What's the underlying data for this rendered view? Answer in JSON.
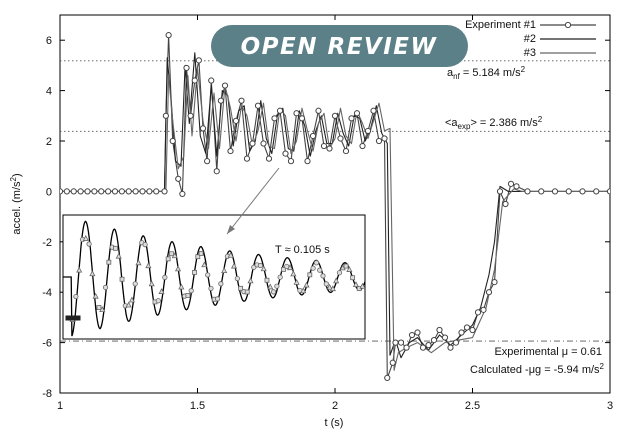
{
  "banner": {
    "text": "OPEN REVIEW",
    "color": "#5b8087"
  },
  "chart_data": {
    "type": "line",
    "xlabel": "t (s)",
    "ylabel": "accel. (m/s²)",
    "xlim": [
      1,
      3
    ],
    "ylim": [
      -8,
      7
    ],
    "x_ticks": [
      1,
      1.5,
      2,
      2.5,
      3
    ],
    "x_tick_labels": [
      "1",
      "1.5",
      "2",
      "2.5",
      "3"
    ],
    "y_ticks": [
      -8,
      -6,
      -4,
      -2,
      0,
      2,
      4,
      6
    ],
    "y_tick_labels": [
      "-8",
      "-6",
      "-4",
      "-2",
      "0",
      "2",
      "4",
      "6"
    ],
    "grid": false,
    "legend_position": "top-right",
    "series": [
      {
        "name": "Experiment #1",
        "marker": "circle",
        "x": [
          1.0,
          1.025,
          1.05,
          1.075,
          1.1,
          1.125,
          1.15,
          1.175,
          1.2,
          1.225,
          1.25,
          1.275,
          1.3,
          1.325,
          1.35,
          1.38,
          1.385,
          1.395,
          1.41,
          1.43,
          1.445,
          1.46,
          1.475,
          1.49,
          1.505,
          1.52,
          1.535,
          1.55,
          1.57,
          1.585,
          1.6,
          1.62,
          1.64,
          1.66,
          1.68,
          1.7,
          1.72,
          1.74,
          1.76,
          1.78,
          1.8,
          1.82,
          1.84,
          1.86,
          1.88,
          1.9,
          1.92,
          1.94,
          1.96,
          1.98,
          2.0,
          2.02,
          2.04,
          2.06,
          2.08,
          2.1,
          2.12,
          2.14,
          2.16,
          2.18,
          2.19,
          2.21,
          2.22,
          2.24,
          2.26,
          2.28,
          2.3,
          2.32,
          2.34,
          2.36,
          2.38,
          2.4,
          2.42,
          2.44,
          2.46,
          2.48,
          2.5,
          2.52,
          2.54,
          2.56,
          2.58,
          2.6,
          2.62,
          2.64,
          2.66,
          2.7,
          2.75,
          2.8,
          2.85,
          2.9,
          2.95,
          3.0
        ],
        "y": [
          0,
          0,
          0,
          0,
          0,
          0,
          0,
          0,
          0,
          0,
          0,
          0,
          0,
          0,
          0,
          0,
          3.0,
          6.2,
          2.0,
          0.5,
          -0.1,
          4.9,
          3.0,
          4.4,
          5.2,
          2.5,
          1.2,
          4.4,
          0.8,
          3.6,
          4.2,
          1.6,
          2.8,
          3.6,
          1.3,
          1.9,
          3.4,
          1.9,
          1.3,
          2.9,
          3.2,
          1.5,
          1.2,
          3.1,
          2.9,
          1.2,
          2.2,
          3.2,
          1.8,
          1.7,
          3.0,
          2.1,
          1.6,
          2.9,
          3.1,
          1.8,
          2.4,
          3.2,
          2.0,
          2.1,
          -7.4,
          -6.8,
          -6.0,
          -6.0,
          -6.2,
          -5.7,
          -5.6,
          -6.2,
          -6.1,
          -5.9,
          -5.5,
          -5.8,
          -6.2,
          -6.0,
          -5.6,
          -5.4,
          -5.5,
          -4.8,
          -4.7,
          -4.0,
          -3.6,
          0.0,
          -0.5,
          0.3,
          0.2,
          0.0,
          0,
          0,
          0,
          0,
          0,
          0
        ]
      },
      {
        "name": "#2",
        "marker": "none",
        "x": [
          1.0,
          1.38,
          1.39,
          1.405,
          1.42,
          1.44,
          1.455,
          1.47,
          1.49,
          1.51,
          1.53,
          1.55,
          1.57,
          1.59,
          1.61,
          1.63,
          1.65,
          1.67,
          1.69,
          1.71,
          1.73,
          1.75,
          1.77,
          1.79,
          1.81,
          1.83,
          1.85,
          1.87,
          1.89,
          1.91,
          1.93,
          1.95,
          1.97,
          1.99,
          2.01,
          2.03,
          2.05,
          2.07,
          2.09,
          2.11,
          2.13,
          2.15,
          2.17,
          2.19,
          2.2,
          2.22,
          2.24,
          2.27,
          2.3,
          2.34,
          2.38,
          2.42,
          2.46,
          2.5,
          2.53,
          2.56,
          2.58,
          2.6,
          2.63,
          2.67,
          3.0
        ],
        "y": [
          0,
          0,
          5.3,
          3.5,
          1.2,
          1.0,
          5.0,
          2.7,
          5.5,
          2.2,
          1.5,
          4.2,
          1.4,
          4.0,
          3.8,
          1.8,
          3.2,
          3.4,
          1.6,
          2.0,
          3.6,
          2.1,
          1.5,
          3.0,
          3.3,
          1.7,
          1.6,
          3.2,
          2.6,
          1.4,
          2.4,
          3.0,
          1.9,
          1.9,
          3.1,
          2.3,
          1.8,
          3.0,
          2.9,
          2.0,
          2.5,
          3.4,
          2.3,
          1.9,
          -6.5,
          -5.9,
          -6.6,
          -6.0,
          -5.8,
          -6.3,
          -5.7,
          -6.1,
          -5.7,
          -5.3,
          -4.6,
          -3.3,
          -2.0,
          0.2,
          0.0,
          0,
          0
        ]
      },
      {
        "name": "#3",
        "marker": "none",
        "x": [
          1.0,
          1.385,
          1.395,
          1.41,
          1.43,
          1.45,
          1.465,
          1.48,
          1.5,
          1.52,
          1.54,
          1.56,
          1.58,
          1.6,
          1.62,
          1.64,
          1.66,
          1.68,
          1.7,
          1.72,
          1.74,
          1.76,
          1.78,
          1.8,
          1.82,
          1.84,
          1.86,
          1.88,
          1.9,
          1.92,
          1.94,
          1.96,
          1.98,
          2.0,
          2.02,
          2.04,
          2.06,
          2.08,
          2.1,
          2.12,
          2.14,
          2.16,
          2.18,
          2.2,
          2.215,
          2.23,
          2.26,
          2.3,
          2.35,
          2.4,
          2.45,
          2.5,
          2.55,
          2.58,
          2.61,
          2.65,
          2.68,
          3.0
        ],
        "y": [
          0,
          0,
          4.6,
          2.8,
          0.9,
          1.4,
          4.6,
          2.2,
          4.9,
          2.8,
          1.7,
          3.9,
          1.7,
          4.2,
          3.3,
          2.0,
          3.4,
          3.0,
          1.8,
          2.4,
          3.5,
          1.8,
          1.7,
          3.3,
          3.0,
          1.5,
          2.0,
          3.3,
          2.4,
          1.6,
          2.7,
          3.1,
          1.7,
          2.1,
          3.3,
          2.2,
          1.9,
          3.2,
          2.7,
          2.1,
          2.8,
          3.5,
          2.4,
          2.5,
          -7.1,
          -6.4,
          -6.2,
          -6.0,
          -6.4,
          -6.0,
          -5.9,
          -5.8,
          -4.6,
          -3.1,
          -0.4,
          0.1,
          0.0,
          0
        ]
      }
    ],
    "reference_lines": [
      {
        "y": 5.184,
        "style": "dotted",
        "label": "a_nf = 5.184 m/s²"
      },
      {
        "y": 2.386,
        "style": "dotted",
        "label": "<a_exp> = 2.386 m/s²"
      },
      {
        "y": -5.94,
        "style": "dash-dot",
        "label_lines": [
          "Experimental μ = 0.61",
          "Calculated -μg = -5.94 m/s²"
        ]
      }
    ],
    "inset": {
      "annotation": "T ≈ 0.105 s",
      "period": 0.105,
      "x_range": [
        1.0,
        2.1
      ],
      "amplitude_start": 5.6,
      "amplitude_end": 1.2,
      "data_marker_shapes": [
        "circle",
        "triangle",
        "square"
      ]
    }
  },
  "labels": {
    "anf_main": "a",
    "anf_sub": "nf",
    "anf_rest": " = 5.184 m/s",
    "anf_sup": "2",
    "aexp_open": "<a",
    "aexp_sub": "exp",
    "aexp_rest": "> = 2.386 m/s",
    "aexp_sup": "2",
    "mu_line1": "Experimental μ = 0.61",
    "mu_line2": "Calculated -μg = -5.94 m/s",
    "mu_line2_sup": "2",
    "ylabel_main": "accel. (m/s",
    "ylabel_sup": "2",
    "ylabel_close": ")"
  }
}
